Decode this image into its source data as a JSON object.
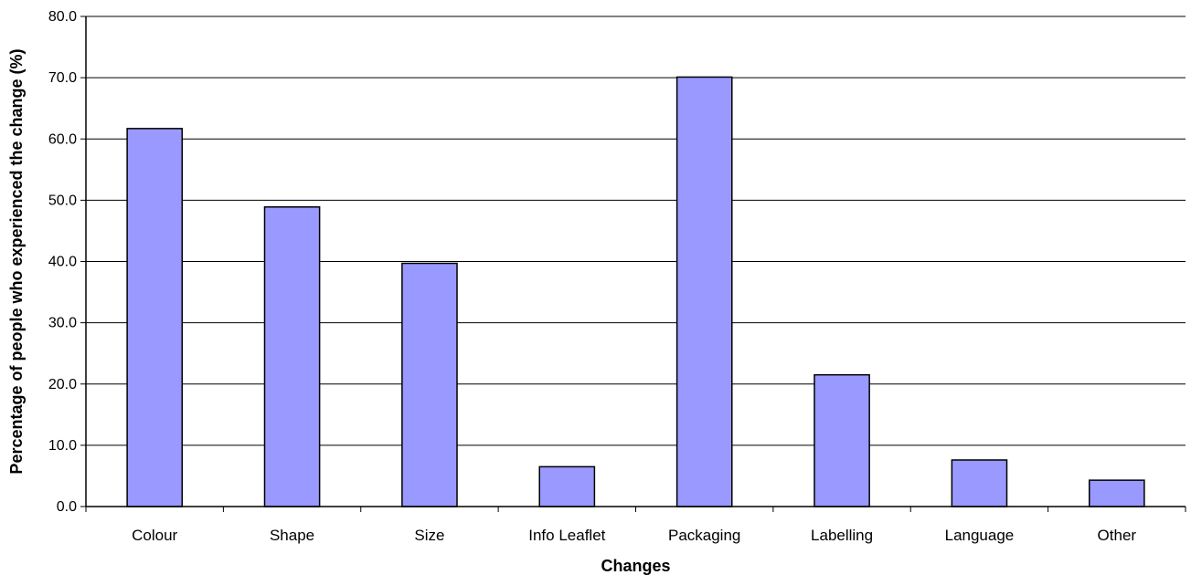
{
  "chart_data": {
    "type": "bar",
    "title": "",
    "xlabel": "Changes",
    "ylabel": "Percentage of people who experienced the change (%)",
    "categories": [
      "Colour",
      "Shape",
      "Size",
      "Info Leaflet",
      "Packaging",
      "Labelling",
      "Language",
      "Other"
    ],
    "values": [
      61.7,
      48.9,
      39.7,
      6.5,
      70.1,
      21.5,
      7.6,
      4.3
    ],
    "ylim": [
      0,
      80
    ],
    "yticks": [
      "0.0",
      "10.0",
      "20.0",
      "30.0",
      "40.0",
      "50.0",
      "60.0",
      "70.0",
      "80.0"
    ],
    "grid": true,
    "legend": "none",
    "colors": {
      "bar_fill": "#9999ff",
      "bar_stroke": "#000000",
      "grid": "#000000"
    }
  }
}
